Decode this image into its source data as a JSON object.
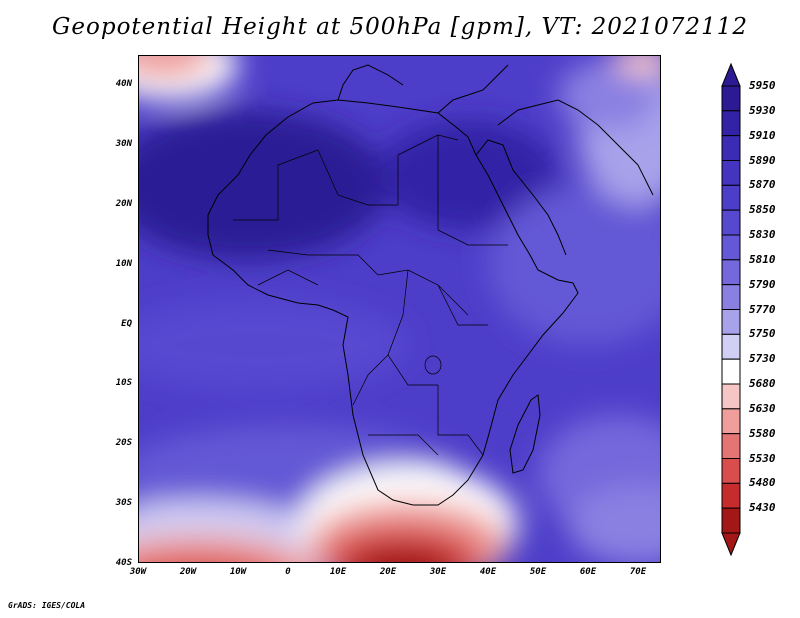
{
  "title": "Geopotential Height at 500hPa [gpm], VT: 2021072112",
  "credit": "GrADS: IGES/COLA",
  "lat_labels": [
    "40N",
    "30N",
    "20N",
    "10N",
    "EQ",
    "10S",
    "20S",
    "30S",
    "40S"
  ],
  "lon_labels": [
    "30W",
    "20W",
    "10W",
    "0",
    "10E",
    "20E",
    "30E",
    "40E",
    "50E",
    "60E",
    "70E"
  ],
  "colorbar": {
    "levels": [
      "5950",
      "5930",
      "5910",
      "5890",
      "5870",
      "5850",
      "5830",
      "5810",
      "5790",
      "5770",
      "5750",
      "5730",
      "5680",
      "5630",
      "5580",
      "5530",
      "5480",
      "5430"
    ],
    "colors": [
      "#2c1a94",
      "#3321a6",
      "#3b2bb5",
      "#4434c0",
      "#4d3ec9",
      "#5748d0",
      "#6458d6",
      "#7468dc",
      "#8a80e2",
      "#a8a2ea",
      "#d2cff4",
      "#ffffff",
      "#f6c6c4",
      "#ef9e9b",
      "#e57573",
      "#d94e4c",
      "#c52c2b",
      "#a31817"
    ]
  },
  "map": {
    "background_color": "#4d3ec9"
  }
}
